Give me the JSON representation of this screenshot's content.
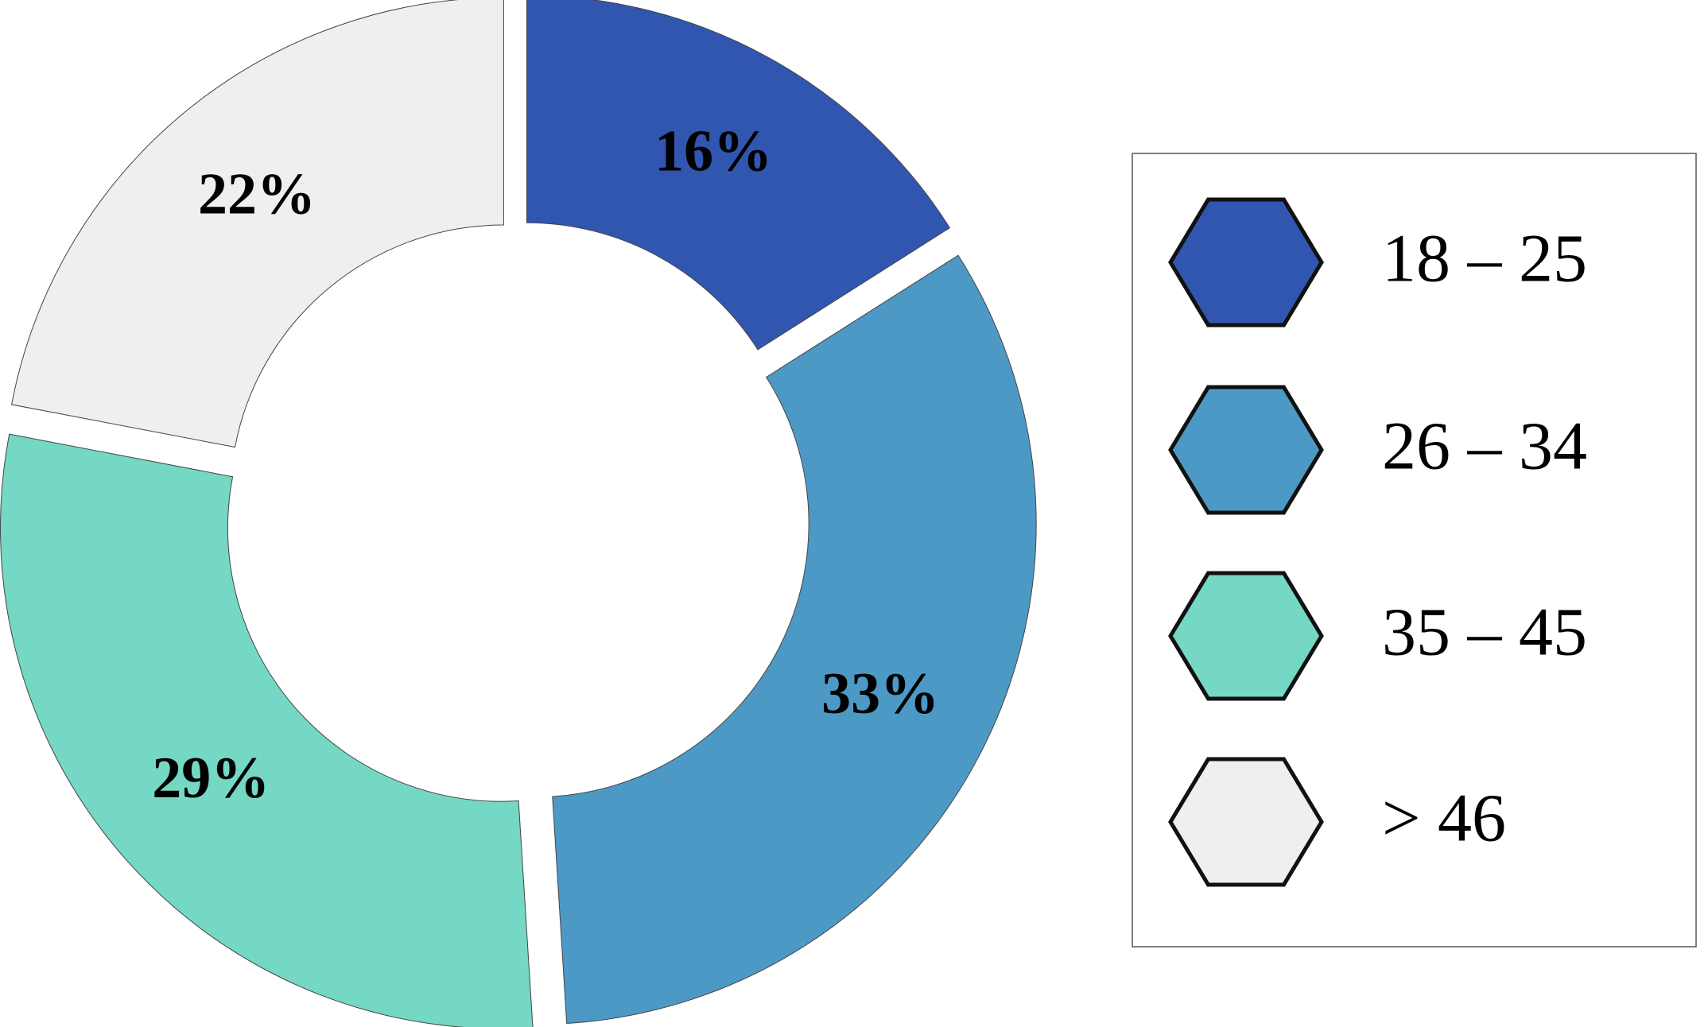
{
  "chart_data": {
    "type": "donut",
    "categories": [
      "18 – 25",
      "26 – 34",
      "35 – 45",
      "> 46"
    ],
    "values": [
      16,
      33,
      29,
      22
    ],
    "value_labels": [
      "16%",
      "33%",
      "29%",
      "22%"
    ],
    "colors": [
      "#3056b0",
      "#4d99c6",
      "#74d8c4",
      "#edf0ef"
    ],
    "legend": "right"
  }
}
